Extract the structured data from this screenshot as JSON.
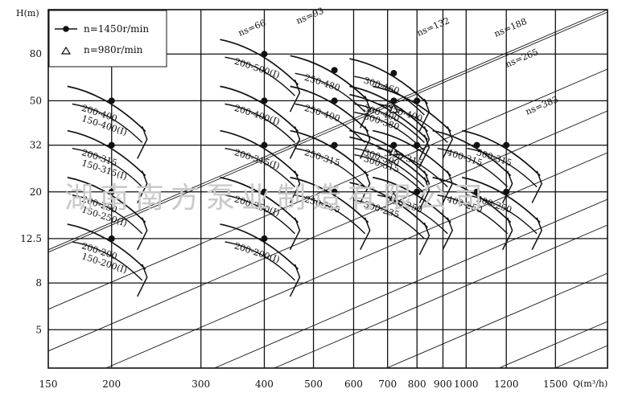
{
  "chart_data": {
    "type": "scatter",
    "title": "",
    "xlabel": "Q(m³/h)",
    "ylabel": "H(m)",
    "xscale": "log",
    "yscale": "log",
    "xlim": [
      150,
      1900
    ],
    "ylim": [
      3.4,
      125
    ],
    "x_ticks": [
      "150",
      "200",
      "300",
      "400",
      "500",
      "600",
      "700",
      "800",
      "900",
      "1000",
      "1200",
      "1500"
    ],
    "y_ticks": [
      "5",
      "8",
      "12.5",
      "20",
      "32",
      "50",
      "80"
    ],
    "grid": true,
    "legend_placement": "top-left",
    "legend": [
      {
        "marker": "filled-circle",
        "label": "n=1450r/min"
      },
      {
        "marker": "open-triangle",
        "label": "n=980r/min"
      }
    ],
    "ns_lines": [
      {
        "label": "ns=66"
      },
      {
        "label": "ns=93"
      },
      {
        "label": "ns=132"
      },
      {
        "label": "ns=188"
      },
      {
        "label": "ns=265"
      },
      {
        "label": "ns=383"
      }
    ],
    "points": [
      {
        "label": "200-400",
        "x": 200,
        "y": 50,
        "speed": "n=1450r/min"
      },
      {
        "label": "150-400(I)",
        "x": 200,
        "y": 50,
        "speed": "n=1450r/min"
      },
      {
        "label": "200-315",
        "x": 200,
        "y": 32,
        "speed": "n=1450r/min"
      },
      {
        "label": "150-315(I)",
        "x": 200,
        "y": 32,
        "speed": "n=1450r/min"
      },
      {
        "label": "200-250",
        "x": 200,
        "y": 20,
        "speed": "n=1450r/min"
      },
      {
        "label": "150-250(I)",
        "x": 200,
        "y": 20,
        "speed": "n=1450r/min"
      },
      {
        "label": "200-200",
        "x": 200,
        "y": 12.5,
        "speed": "n=1450r/min"
      },
      {
        "label": "150-200(I)",
        "x": 200,
        "y": 12.5,
        "speed": "n=1450r/min"
      },
      {
        "label": "200-500(I)",
        "x": 400,
        "y": 80,
        "speed": "n=1450r/min"
      },
      {
        "label": "200-400(I)",
        "x": 400,
        "y": 50,
        "speed": "n=1450r/min"
      },
      {
        "label": "200-315(I)",
        "x": 400,
        "y": 32,
        "speed": "n=1450r/min"
      },
      {
        "label": "200-250(I)",
        "x": 400,
        "y": 20,
        "speed": "n=1450r/min"
      },
      {
        "label": "200-200(I)",
        "x": 400,
        "y": 12.5,
        "speed": "n=1450r/min"
      },
      {
        "label": "250-480",
        "x": 550,
        "y": 68,
        "speed": "n=1450r/min"
      },
      {
        "label": "250-400",
        "x": 550,
        "y": 50,
        "speed": "n=1450r/min"
      },
      {
        "label": "250-315",
        "x": 550,
        "y": 32,
        "speed": "n=1450r/min"
      },
      {
        "label": "250-250",
        "x": 550,
        "y": 20,
        "speed": "n=1450r/min"
      },
      {
        "label": "300-460",
        "x": 720,
        "y": 66,
        "speed": "n=1450r/min"
      },
      {
        "label": "300-400",
        "x": 720,
        "y": 50,
        "speed": "n=1450r/min"
      },
      {
        "label": "300-380",
        "x": 720,
        "y": 46,
        "speed": "n=980r/min"
      },
      {
        "label": "300-300",
        "x": 720,
        "y": 32,
        "speed": "n=1450r/min"
      },
      {
        "label": "300-315",
        "x": 720,
        "y": 30,
        "speed": "n=980r/min"
      },
      {
        "label": "300-235",
        "x": 720,
        "y": 19,
        "speed": "n=980r/min"
      },
      {
        "label": "350-400",
        "x": 800,
        "y": 50,
        "speed": "n=1450r/min"
      },
      {
        "label": "350-315",
        "x": 800,
        "y": 32,
        "speed": "n=1450r/min"
      },
      {
        "label": "350-250",
        "x": 800,
        "y": 20,
        "speed": "n=1450r/min"
      },
      {
        "label": "400-315",
        "x": 1050,
        "y": 32,
        "speed": "n=1450r/min"
      },
      {
        "label": "400-250",
        "x": 1050,
        "y": 20,
        "speed": "n=1450r/min"
      },
      {
        "label": "500-315",
        "x": 1200,
        "y": 32,
        "speed": "n=1450r/min"
      },
      {
        "label": "500-250",
        "x": 1200,
        "y": 20,
        "speed": "n=1450r/min"
      }
    ]
  },
  "watermark": "湖南南方泵业制造有限公司"
}
